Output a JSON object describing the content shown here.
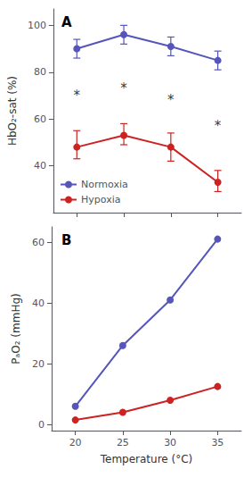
{
  "chart_data": [
    {
      "type": "line",
      "title": "A",
      "x": [
        20,
        25,
        30,
        35
      ],
      "series": [
        {
          "name": "Normoxia",
          "color": "#5555bb",
          "values": [
            90,
            96,
            91,
            85
          ],
          "errors": [
            4,
            4,
            4,
            4
          ]
        },
        {
          "name": "Hypoxia",
          "color": "#cc2222",
          "values": [
            48,
            53,
            48,
            33
          ],
          "errors_lower": [
            5,
            4,
            6,
            4
          ],
          "errors_upper": [
            7,
            5,
            6,
            5
          ]
        }
      ],
      "annotations": [
        {
          "x": 20,
          "y": 70,
          "text": "*"
        },
        {
          "x": 25,
          "y": 73,
          "text": "*"
        },
        {
          "x": 30,
          "y": 68,
          "text": "*"
        },
        {
          "x": 35,
          "y": 57,
          "text": "*"
        }
      ],
      "ylabel": "HbO₂-sat (%)",
      "xlim": [
        17.5,
        37.5
      ],
      "xticks": [
        20,
        25,
        30,
        35
      ],
      "ylim": [
        20,
        107
      ],
      "yticks": [
        40,
        60,
        80,
        100
      ],
      "marker": "circle",
      "grid": false,
      "legend": "lower left",
      "tick_labels": "y"
    },
    {
      "type": "line",
      "title": "B",
      "x": [
        20,
        25,
        30,
        35
      ],
      "series": [
        {
          "name": "Normoxia",
          "color": "#5555bb",
          "values": [
            6,
            26,
            41,
            61
          ]
        },
        {
          "name": "Hypoxia",
          "color": "#cc2222",
          "values": [
            1.5,
            4,
            8,
            12.5
          ]
        }
      ],
      "ylabel": "PₐO₂ (mmHg)",
      "xlabel": "Temperature (°C)",
      "xlim": [
        17.5,
        37.5
      ],
      "xticks": [
        20,
        25,
        30,
        35
      ],
      "ylim": [
        -2,
        65
      ],
      "yticks": [
        0,
        20,
        40,
        60
      ],
      "marker": "circle",
      "grid": false
    }
  ]
}
